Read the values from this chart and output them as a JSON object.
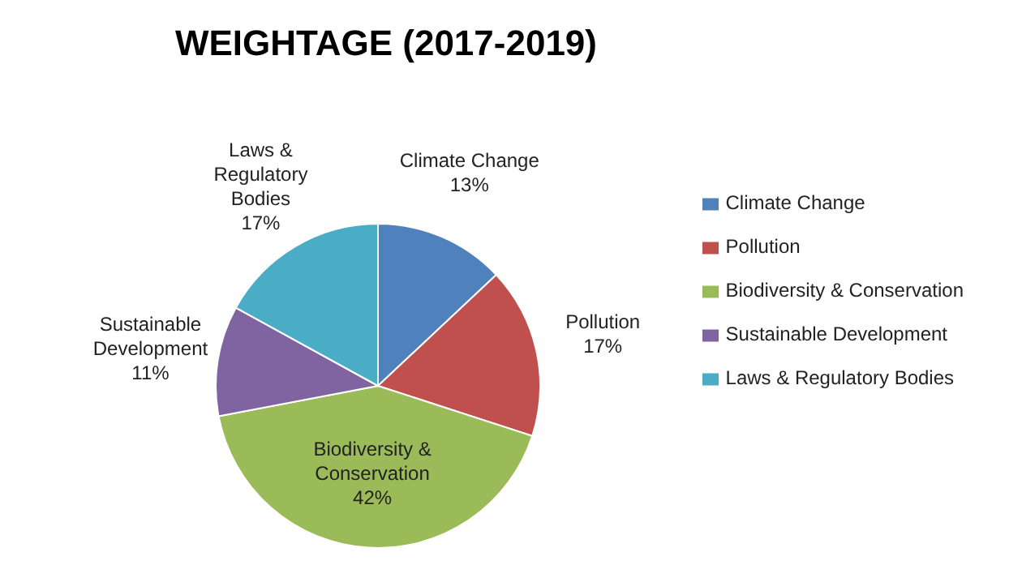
{
  "chart_data": {
    "type": "pie",
    "title": "WEIGHTAGE (2017-2019)",
    "categories": [
      "Climate Change",
      "Pollution",
      "Biodiversity & Conservation",
      "Sustainable Development",
      "Laws & Regulatory Bodies"
    ],
    "values": [
      13,
      17,
      42,
      11,
      17
    ],
    "colors": [
      "#4f81bd",
      "#c0504d",
      "#9bbb59",
      "#8064a2",
      "#4bacc6"
    ],
    "value_labels": [
      "13%",
      "17%",
      "42%",
      "11%",
      "17%"
    ],
    "legend": "right"
  }
}
